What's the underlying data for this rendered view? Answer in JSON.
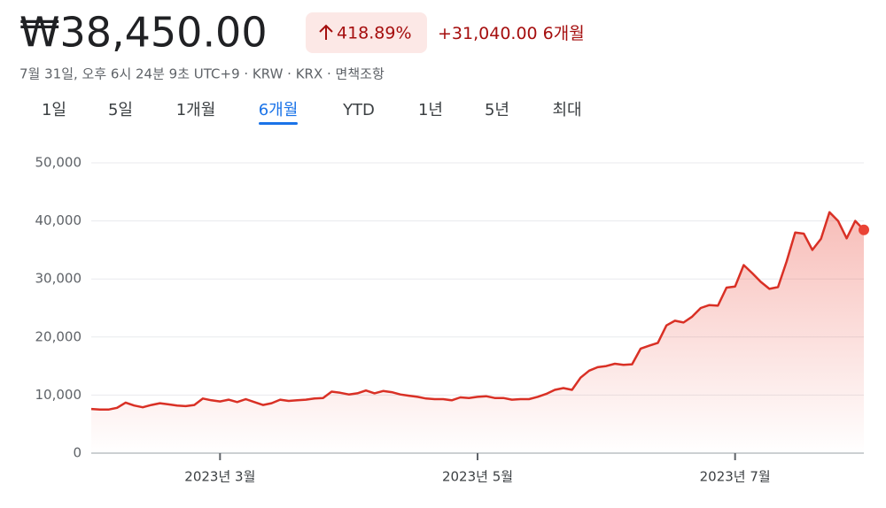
{
  "header": {
    "price": "₩38,450.00",
    "change_pct": "418.89%",
    "change_abs": "+31,040.00",
    "period": "6개월",
    "subtitle": "7월 31일, 오후 6시 24분 9초 UTC+9 · KRW · KRX · 면책조항"
  },
  "tabs": {
    "items": [
      "1일",
      "5일",
      "1개월",
      "6개월",
      "YTD",
      "1년",
      "5년",
      "최대"
    ],
    "selected": 3
  },
  "chart_data": {
    "type": "line",
    "categories": [
      null,
      null,
      null,
      null,
      null,
      null,
      null,
      null,
      null,
      null,
      null,
      null,
      null,
      null,
      null,
      "2023년 3월",
      null,
      null,
      null,
      null,
      null,
      null,
      null,
      null,
      null,
      null,
      null,
      null,
      null,
      null,
      null,
      null,
      null,
      null,
      null,
      null,
      null,
      null,
      null,
      null,
      null,
      null,
      null,
      null,
      null,
      "2023년 5월",
      null,
      null,
      null,
      null,
      null,
      null,
      null,
      null,
      null,
      null,
      null,
      null,
      null,
      null,
      null,
      null,
      null,
      null,
      null,
      null,
      null,
      null,
      null,
      null,
      null,
      null,
      null,
      null,
      null,
      "2023년 7월",
      null,
      null,
      null,
      null,
      null,
      null,
      null,
      null,
      null,
      null,
      null,
      null,
      null,
      null,
      null
    ],
    "series": [
      {
        "color": "#d93025",
        "values": [
          7600,
          7500,
          7500,
          7800,
          8700,
          8200,
          7900,
          8300,
          8600,
          8400,
          8200,
          8100,
          8300,
          9400,
          9100,
          8900,
          9200,
          8800,
          9300,
          8800,
          8300,
          8600,
          9200,
          9000,
          9100,
          9200,
          9400,
          9500,
          10600,
          10400,
          10100,
          10300,
          10800,
          10300,
          10700,
          10500,
          10100,
          9900,
          9700,
          9400,
          9300,
          9300,
          9100,
          9600,
          9500,
          9700,
          9800,
          9500,
          9500,
          9200,
          9300,
          9300,
          9700,
          10200,
          10900,
          11200,
          10900,
          13000,
          14200,
          14800,
          15000,
          15400,
          15200,
          15300,
          18000,
          18500,
          19000,
          22000,
          22800,
          22500,
          23500,
          25000,
          25500,
          25400,
          28500,
          28700,
          32400,
          31000,
          29500,
          28300,
          28600,
          33000,
          38000,
          37800,
          35000,
          36900,
          41500,
          40000,
          37000,
          40000,
          38450
        ]
      }
    ],
    "ylim": [
      0,
      50000
    ],
    "yticks": [
      0,
      {
        "value": 10000,
        "label": "10,000"
      },
      {
        "value": 20000,
        "label": "20,000"
      },
      {
        "value": 30000,
        "label": "30,000"
      },
      {
        "value": 40000,
        "label": "40,000"
      },
      {
        "value": 50000,
        "label": "50,000"
      }
    ],
    "grid": true
  }
}
